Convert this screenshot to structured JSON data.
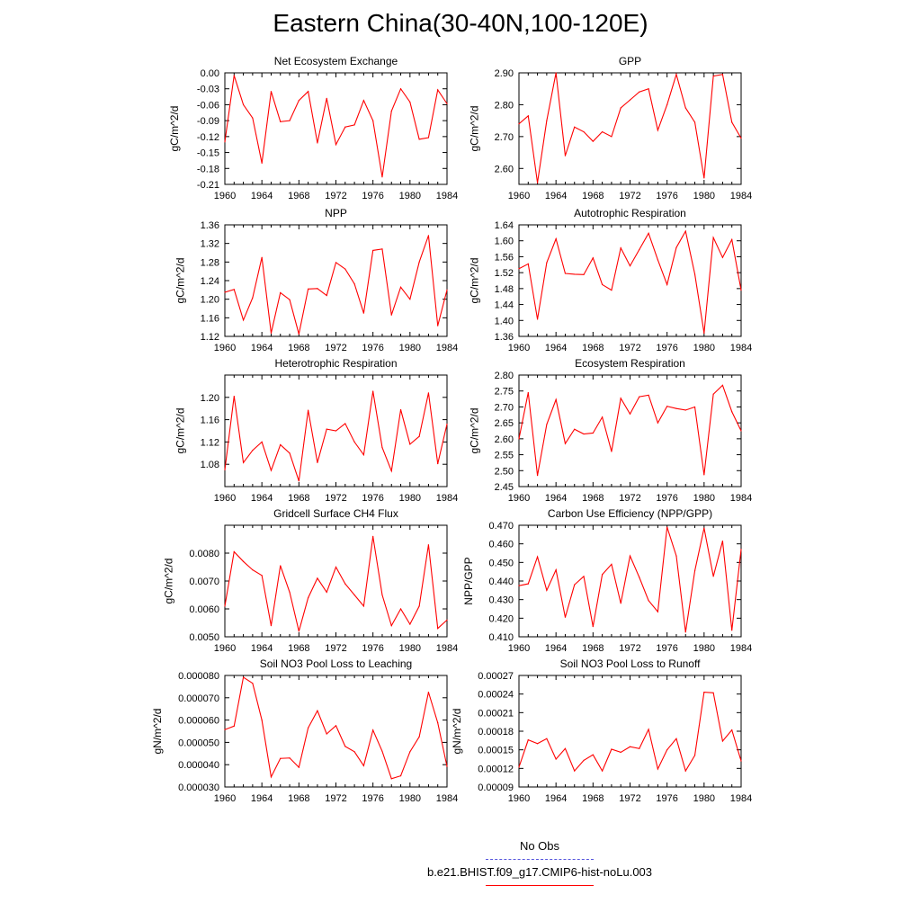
{
  "title": "Eastern China(30-40N,100-120E)",
  "legend": {
    "obs_label": "No Obs",
    "obs_color": "#5555dd",
    "model_label": "b.e21.BHIST.f09_g17.CMIP6-hist-noLu.003",
    "model_color": "#ff0000"
  },
  "chart_data": [
    {
      "type": "line",
      "title": "Net Ecosystem Exchange",
      "ylabel": "gC/m^2/d",
      "xlim": [
        1960,
        1984
      ],
      "ylim": [
        -0.21,
        0.0
      ],
      "xticks": [
        1960,
        1964,
        1968,
        1972,
        1976,
        1980,
        1984
      ],
      "yticks": [
        0.0,
        -0.03,
        -0.06,
        -0.09,
        -0.12,
        -0.15,
        -0.18,
        -0.21
      ],
      "ytick_labels": [
        "0.00",
        "-0.03",
        "-0.06",
        "-0.09",
        "-0.12",
        "-0.15",
        "-0.18",
        "-0.21"
      ],
      "x": [
        1960,
        1961,
        1962,
        1963,
        1964,
        1965,
        1966,
        1967,
        1968,
        1969,
        1970,
        1971,
        1972,
        1973,
        1974,
        1975,
        1976,
        1977,
        1978,
        1979,
        1980,
        1981,
        1982,
        1983,
        1984
      ],
      "series": [
        {
          "color": "#ff0000",
          "values": [
            -0.13,
            -0.005,
            -0.06,
            -0.085,
            -0.17,
            -0.035,
            -0.092,
            -0.09,
            -0.052,
            -0.035,
            -0.132,
            -0.048,
            -0.135,
            -0.102,
            -0.098,
            -0.052,
            -0.09,
            -0.196,
            -0.072,
            -0.03,
            -0.055,
            -0.125,
            -0.122,
            -0.032,
            -0.058
          ]
        }
      ]
    },
    {
      "type": "line",
      "title": "GPP",
      "ylabel": "gC/m^2/d",
      "xlim": [
        1960,
        1984
      ],
      "ylim": [
        2.55,
        2.9
      ],
      "xticks": [
        1960,
        1964,
        1968,
        1972,
        1976,
        1980,
        1984
      ],
      "yticks": [
        2.6,
        2.7,
        2.8,
        2.9
      ],
      "ytick_labels": [
        "2.60",
        "2.70",
        "2.80",
        "2.90"
      ],
      "x": [
        1960,
        1961,
        1962,
        1963,
        1964,
        1965,
        1966,
        1967,
        1968,
        1969,
        1970,
        1971,
        1972,
        1973,
        1974,
        1975,
        1976,
        1977,
        1978,
        1979,
        1980,
        1981,
        1982,
        1983,
        1984
      ],
      "series": [
        {
          "color": "#ff0000",
          "values": [
            2.74,
            2.765,
            2.555,
            2.75,
            2.9,
            2.64,
            2.73,
            2.715,
            2.685,
            2.715,
            2.7,
            2.79,
            2.815,
            2.84,
            2.85,
            2.72,
            2.8,
            2.895,
            2.79,
            2.745,
            2.57,
            2.89,
            2.895,
            2.745,
            2.695
          ]
        }
      ]
    },
    {
      "type": "line",
      "title": "NPP",
      "ylabel": "gC/m^2/d",
      "xlim": [
        1960,
        1984
      ],
      "ylim": [
        1.12,
        1.36
      ],
      "xticks": [
        1960,
        1964,
        1968,
        1972,
        1976,
        1980,
        1984
      ],
      "yticks": [
        1.12,
        1.16,
        1.2,
        1.24,
        1.28,
        1.32,
        1.36
      ],
      "ytick_labels": [
        "1.12",
        "1.16",
        "1.20",
        "1.24",
        "1.28",
        "1.32",
        "1.36"
      ],
      "x": [
        1960,
        1961,
        1962,
        1963,
        1964,
        1965,
        1966,
        1967,
        1968,
        1969,
        1970,
        1971,
        1972,
        1973,
        1974,
        1975,
        1976,
        1977,
        1978,
        1979,
        1980,
        1981,
        1982,
        1983,
        1984
      ],
      "series": [
        {
          "color": "#ff0000",
          "values": [
            1.215,
            1.221,
            1.155,
            1.203,
            1.29,
            1.127,
            1.214,
            1.199,
            1.125,
            1.222,
            1.223,
            1.208,
            1.279,
            1.265,
            1.233,
            1.17,
            1.305,
            1.308,
            1.166,
            1.226,
            1.2,
            1.28,
            1.337,
            1.143,
            1.22
          ]
        }
      ]
    },
    {
      "type": "line",
      "title": "Autotrophic Respiration",
      "ylabel": "gC/m^2/d",
      "xlim": [
        1960,
        1984
      ],
      "ylim": [
        1.36,
        1.64
      ],
      "xticks": [
        1960,
        1964,
        1968,
        1972,
        1976,
        1980,
        1984
      ],
      "yticks": [
        1.36,
        1.4,
        1.44,
        1.48,
        1.52,
        1.56,
        1.6,
        1.64
      ],
      "ytick_labels": [
        "1.36",
        "1.40",
        "1.44",
        "1.48",
        "1.52",
        "1.56",
        "1.60",
        "1.64"
      ],
      "x": [
        1960,
        1961,
        1962,
        1963,
        1964,
        1965,
        1966,
        1967,
        1968,
        1969,
        1970,
        1971,
        1972,
        1973,
        1974,
        1975,
        1976,
        1977,
        1978,
        1979,
        1980,
        1981,
        1982,
        1983,
        1984
      ],
      "series": [
        {
          "color": "#ff0000",
          "values": [
            1.53,
            1.542,
            1.403,
            1.545,
            1.605,
            1.518,
            1.516,
            1.515,
            1.557,
            1.49,
            1.476,
            1.582,
            1.537,
            1.578,
            1.619,
            1.552,
            1.49,
            1.583,
            1.624,
            1.516,
            1.368,
            1.608,
            1.558,
            1.603,
            1.476
          ]
        }
      ]
    },
    {
      "type": "line",
      "title": "Heterotrophic Respiration",
      "ylabel": "gC/m^2/d",
      "xlim": [
        1960,
        1984
      ],
      "ylim": [
        1.04,
        1.24
      ],
      "xticks": [
        1960,
        1964,
        1968,
        1972,
        1976,
        1980,
        1984
      ],
      "yticks": [
        1.08,
        1.12,
        1.16,
        1.2
      ],
      "ytick_labels": [
        "1.08",
        "1.12",
        "1.16",
        "1.20"
      ],
      "x": [
        1960,
        1961,
        1962,
        1963,
        1964,
        1965,
        1966,
        1967,
        1968,
        1969,
        1970,
        1971,
        1972,
        1973,
        1974,
        1975,
        1976,
        1977,
        1978,
        1979,
        1980,
        1981,
        1982,
        1983,
        1984
      ],
      "series": [
        {
          "color": "#ff0000",
          "values": [
            1.07,
            1.202,
            1.083,
            1.105,
            1.12,
            1.069,
            1.115,
            1.1,
            1.05,
            1.177,
            1.083,
            1.143,
            1.14,
            1.153,
            1.12,
            1.097,
            1.211,
            1.11,
            1.068,
            1.178,
            1.116,
            1.13,
            1.208,
            1.081,
            1.152
          ]
        }
      ]
    },
    {
      "type": "line",
      "title": "Ecosystem Respiration",
      "ylabel": "gC/m^2/d",
      "xlim": [
        1960,
        1984
      ],
      "ylim": [
        2.45,
        2.8
      ],
      "xticks": [
        1960,
        1964,
        1968,
        1972,
        1976,
        1980,
        1984
      ],
      "yticks": [
        2.45,
        2.5,
        2.55,
        2.6,
        2.65,
        2.7,
        2.75,
        2.8
      ],
      "ytick_labels": [
        "2.45",
        "2.50",
        "2.55",
        "2.60",
        "2.65",
        "2.70",
        "2.75",
        "2.80"
      ],
      "x": [
        1960,
        1961,
        1962,
        1963,
        1964,
        1965,
        1966,
        1967,
        1968,
        1969,
        1970,
        1971,
        1972,
        1973,
        1974,
        1975,
        1976,
        1977,
        1978,
        1979,
        1980,
        1981,
        1982,
        1983,
        1984
      ],
      "series": [
        {
          "color": "#ff0000",
          "values": [
            2.6,
            2.745,
            2.485,
            2.645,
            2.723,
            2.585,
            2.63,
            2.615,
            2.618,
            2.668,
            2.56,
            2.727,
            2.678,
            2.732,
            2.737,
            2.65,
            2.702,
            2.695,
            2.69,
            2.7,
            2.487,
            2.74,
            2.768,
            2.685,
            2.625
          ]
        }
      ]
    },
    {
      "type": "line",
      "title": "Gridcell Surface CH4 Flux",
      "ylabel": "gC/m^2/d",
      "xlim": [
        1960,
        1984
      ],
      "ylim": [
        0.005,
        0.009
      ],
      "xticks": [
        1960,
        1964,
        1968,
        1972,
        1976,
        1980,
        1984
      ],
      "yticks": [
        0.005,
        0.006,
        0.007,
        0.008
      ],
      "ytick_labels": [
        "0.0050",
        "0.0060",
        "0.0070",
        "0.0080"
      ],
      "x": [
        1960,
        1961,
        1962,
        1963,
        1964,
        1965,
        1966,
        1967,
        1968,
        1969,
        1970,
        1971,
        1972,
        1973,
        1974,
        1975,
        1976,
        1977,
        1978,
        1979,
        1980,
        1981,
        1982,
        1983,
        1984
      ],
      "series": [
        {
          "color": "#ff0000",
          "values": [
            0.0061,
            0.00805,
            0.0077,
            0.0074,
            0.0072,
            0.0054,
            0.00755,
            0.0066,
            0.0052,
            0.0064,
            0.0071,
            0.0066,
            0.0075,
            0.0069,
            0.0065,
            0.0061,
            0.0086,
            0.0065,
            0.0054,
            0.006,
            0.00545,
            0.0061,
            0.0083,
            0.0053,
            0.0056
          ]
        }
      ]
    },
    {
      "type": "line",
      "title": "Carbon Use Efficiency (NPP/GPP)",
      "ylabel": "NPP/GPP",
      "xlim": [
        1960,
        1984
      ],
      "ylim": [
        0.41,
        0.47
      ],
      "xticks": [
        1960,
        1964,
        1968,
        1972,
        1976,
        1980,
        1984
      ],
      "yticks": [
        0.41,
        0.42,
        0.43,
        0.44,
        0.45,
        0.46,
        0.47
      ],
      "ytick_labels": [
        "0.410",
        "0.420",
        "0.430",
        "0.440",
        "0.450",
        "0.460",
        "0.470"
      ],
      "x": [
        1960,
        1961,
        1962,
        1963,
        1964,
        1965,
        1966,
        1967,
        1968,
        1969,
        1970,
        1971,
        1972,
        1973,
        1974,
        1975,
        1976,
        1977,
        1978,
        1979,
        1980,
        1981,
        1982,
        1983,
        1984
      ],
      "series": [
        {
          "color": "#ff0000",
          "values": [
            0.4375,
            0.4385,
            0.453,
            0.435,
            0.446,
            0.4205,
            0.438,
            0.4425,
            0.4155,
            0.4435,
            0.449,
            0.428,
            0.4535,
            0.442,
            0.4295,
            0.4235,
            0.469,
            0.4535,
            0.4125,
            0.4455,
            0.4685,
            0.4425,
            0.4615,
            0.4135,
            0.457
          ]
        }
      ]
    },
    {
      "type": "line",
      "title": "Soil NO3 Pool Loss to Leaching",
      "ylabel": "gN/m^2/d",
      "xlim": [
        1960,
        1984
      ],
      "ylim": [
        3e-05,
        8e-05
      ],
      "xticks": [
        1960,
        1964,
        1968,
        1972,
        1976,
        1980,
        1984
      ],
      "yticks": [
        3e-05,
        4e-05,
        5e-05,
        6e-05,
        7e-05,
        8e-05
      ],
      "ytick_labels": [
        "0.000030",
        "0.000040",
        "0.000050",
        "0.000060",
        "0.000070",
        "0.000080"
      ],
      "x": [
        1960,
        1961,
        1962,
        1963,
        1964,
        1965,
        1966,
        1967,
        1968,
        1969,
        1970,
        1971,
        1972,
        1973,
        1974,
        1975,
        1976,
        1977,
        1978,
        1979,
        1980,
        1981,
        1982,
        1983,
        1984
      ],
      "series": [
        {
          "color": "#ff0000",
          "values": [
            5.57e-05,
            5.73e-05,
            7.92e-05,
            7.65e-05,
            6e-05,
            3.45e-05,
            4.28e-05,
            4.3e-05,
            3.88e-05,
            5.65e-05,
            6.42e-05,
            5.38e-05,
            5.75e-05,
            4.82e-05,
            4.58e-05,
            3.95e-05,
            5.55e-05,
            4.6e-05,
            3.37e-05,
            3.5e-05,
            4.58e-05,
            5.25e-05,
            7.25e-05,
            5.88e-05,
            3.92e-05
          ]
        }
      ]
    },
    {
      "type": "line",
      "title": "Soil NO3 Pool Loss to Runoff",
      "ylabel": "gN/m^2/d",
      "xlim": [
        1960,
        1984
      ],
      "ylim": [
        9e-05,
        0.00027
      ],
      "xticks": [
        1960,
        1964,
        1968,
        1972,
        1976,
        1980,
        1984
      ],
      "yticks": [
        9e-05,
        0.00012,
        0.00015,
        0.00018,
        0.00021,
        0.00024,
        0.00027
      ],
      "ytick_labels": [
        "0.00009",
        "0.00012",
        "0.00015",
        "0.00018",
        "0.00021",
        "0.00024",
        "0.00027"
      ],
      "x": [
        1960,
        1961,
        1962,
        1963,
        1964,
        1965,
        1966,
        1967,
        1968,
        1969,
        1970,
        1971,
        1972,
        1973,
        1974,
        1975,
        1976,
        1977,
        1978,
        1979,
        1980,
        1981,
        1982,
        1983,
        1984
      ],
      "series": [
        {
          "color": "#ff0000",
          "values": [
            0.000122,
            0.000166,
            0.00016,
            0.000168,
            0.000135,
            0.000152,
            0.000116,
            0.000133,
            0.000142,
            0.000116,
            0.000151,
            0.000146,
            0.000155,
            0.000152,
            0.000183,
            0.000119,
            0.00015,
            0.000168,
            0.000116,
            0.000141,
            0.000243,
            0.000242,
            0.000164,
            0.000182,
            0.000132
          ]
        }
      ]
    }
  ]
}
